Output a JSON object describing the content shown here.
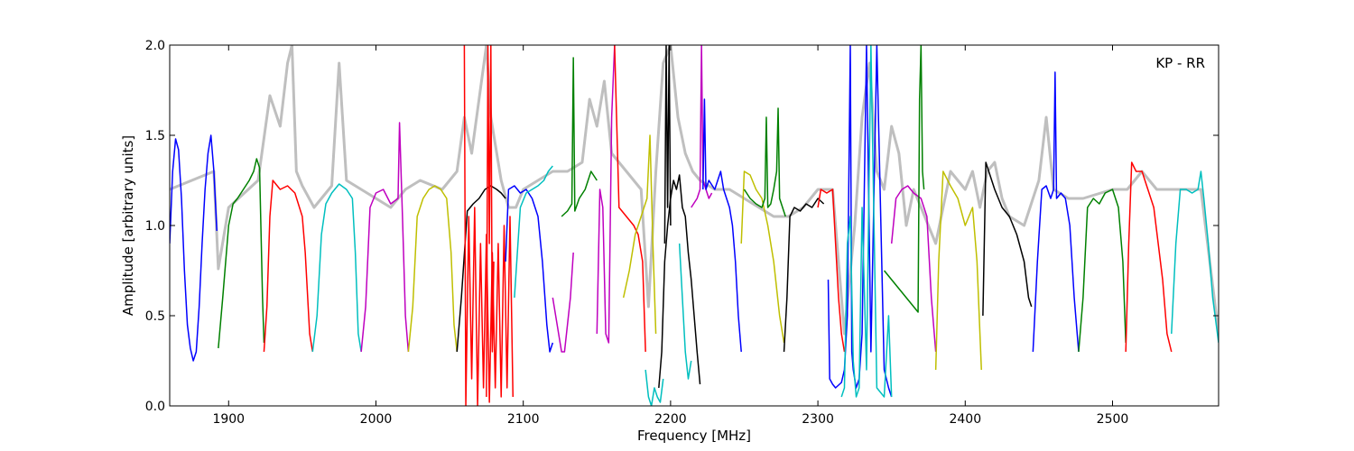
{
  "chart_data": {
    "type": "line",
    "title": "",
    "xlabel": "Frequency [MHz]",
    "ylabel": "Amplitude [arbitrary units]",
    "annotation": "KP - RR",
    "xlim": [
      1860,
      2572
    ],
    "ylim": [
      0.0,
      2.0
    ],
    "xticks": [
      1900,
      2000,
      2100,
      2200,
      2300,
      2400,
      2500
    ],
    "yticks": [
      0.0,
      0.5,
      1.0,
      1.5,
      2.0
    ],
    "xtick_labels": [
      "1900",
      "2000",
      "2100",
      "2200",
      "2300",
      "2400",
      "2500"
    ],
    "ytick_labels": [
      "0.0",
      "0.5",
      "1.0",
      "1.5",
      "2.0"
    ],
    "grid": false,
    "background_series": {
      "color": "#bfbfbf",
      "x": [
        1860,
        1890,
        1893,
        1900,
        1920,
        1928,
        1935,
        1940,
        1943,
        1946,
        1950,
        1958,
        1970,
        1975,
        1980,
        1990,
        2000,
        2010,
        2020,
        2030,
        2045,
        2055,
        2060,
        2065,
        2070,
        2075,
        2078,
        2085,
        2090,
        2095,
        2100,
        2110,
        2120,
        2130,
        2140,
        2145,
        2150,
        2155,
        2160,
        2170,
        2180,
        2185,
        2190,
        2195,
        2200,
        2205,
        2210,
        2215,
        2220,
        2230,
        2240,
        2250,
        2260,
        2270,
        2280,
        2290,
        2300,
        2310,
        2318,
        2325,
        2330,
        2335,
        2340,
        2345,
        2350,
        2355,
        2360,
        2365,
        2370,
        2380,
        2390,
        2400,
        2405,
        2410,
        2415,
        2420,
        2425,
        2430,
        2440,
        2450,
        2455,
        2460,
        2470,
        2480,
        2500,
        2510,
        2520,
        2530,
        2540,
        2550,
        2560,
        2572
      ],
      "y": [
        1.2,
        1.3,
        0.76,
        1.1,
        1.25,
        1.72,
        1.55,
        1.9,
        2.0,
        1.3,
        1.22,
        1.1,
        1.22,
        1.9,
        1.25,
        1.2,
        1.15,
        1.1,
        1.2,
        1.25,
        1.2,
        1.3,
        1.6,
        1.4,
        1.7,
        2.0,
        1.6,
        1.25,
        1.1,
        1.1,
        1.2,
        1.25,
        1.3,
        1.3,
        1.35,
        1.7,
        1.55,
        1.8,
        1.4,
        1.3,
        1.2,
        0.55,
        1.3,
        1.9,
        2.0,
        1.6,
        1.4,
        1.3,
        1.25,
        1.2,
        1.2,
        1.15,
        1.1,
        1.05,
        1.05,
        1.1,
        1.2,
        1.2,
        0.4,
        1.0,
        1.6,
        1.9,
        1.3,
        1.2,
        1.55,
        1.4,
        1.0,
        1.2,
        1.1,
        0.9,
        1.3,
        1.2,
        1.3,
        1.1,
        1.3,
        1.35,
        1.15,
        1.05,
        1.0,
        1.25,
        1.6,
        1.2,
        1.15,
        1.15,
        1.2,
        1.2,
        1.3,
        1.2,
        1.2,
        1.2,
        1.2,
        0.4
      ]
    },
    "series": [
      {
        "color": "#0000ff",
        "x": [
          1860,
          1862,
          1864,
          1866,
          1868,
          1870,
          1872,
          1874,
          1876,
          1878,
          1880,
          1882,
          1884,
          1886,
          1888,
          1890,
          1892
        ],
        "y": [
          0.9,
          1.3,
          1.48,
          1.42,
          1.15,
          0.75,
          0.45,
          0.32,
          0.25,
          0.3,
          0.55,
          0.9,
          1.2,
          1.4,
          1.5,
          1.3,
          0.97
        ]
      },
      {
        "color": "#008000",
        "x": [
          1893,
          1896,
          1900,
          1903,
          1906,
          1910,
          1914,
          1917,
          1919,
          1921,
          1923,
          1924
        ],
        "y": [
          0.32,
          0.6,
          1.0,
          1.12,
          1.15,
          1.2,
          1.25,
          1.3,
          1.37,
          1.32,
          0.6,
          0.35
        ]
      },
      {
        "color": "#ff0000",
        "x": [
          1924,
          1926,
          1928,
          1930,
          1935,
          1940,
          1945,
          1950,
          1952,
          1955,
          1957
        ],
        "y": [
          0.3,
          0.55,
          1.05,
          1.25,
          1.2,
          1.22,
          1.18,
          1.05,
          0.85,
          0.4,
          0.3
        ]
      },
      {
        "color": "#00bfbf",
        "x": [
          1957,
          1960,
          1963,
          1966,
          1970,
          1975,
          1980,
          1984,
          1986,
          1988,
          1990
        ],
        "y": [
          0.3,
          0.5,
          0.95,
          1.12,
          1.18,
          1.23,
          1.2,
          1.15,
          0.85,
          0.4,
          0.3
        ]
      },
      {
        "color": "#bf00bf",
        "x": [
          1990,
          1993,
          1996,
          2000,
          2005,
          2010,
          2015,
          2016,
          2018,
          2020,
          2022
        ],
        "y": [
          0.3,
          0.55,
          1.1,
          1.18,
          1.2,
          1.12,
          1.15,
          1.57,
          1.05,
          0.5,
          0.3
        ]
      },
      {
        "color": "#bfbf00",
        "x": [
          2022,
          2025,
          2028,
          2032,
          2036,
          2040,
          2044,
          2048,
          2051,
          2053,
          2055
        ],
        "y": [
          0.3,
          0.55,
          1.05,
          1.15,
          1.2,
          1.22,
          1.2,
          1.15,
          0.85,
          0.45,
          0.3
        ]
      },
      {
        "color": "#000000",
        "x": [
          2055,
          2058,
          2062,
          2066,
          2070,
          2074,
          2078,
          2082,
          2085,
          2088
        ],
        "y": [
          0.3,
          0.6,
          1.08,
          1.12,
          1.15,
          1.2,
          1.22,
          1.2,
          1.18,
          1.15
        ]
      },
      {
        "color": "#ff0000",
        "x": [
          2060,
          2061,
          2063,
          2065,
          2067,
          2069,
          2071,
          2073,
          2075,
          2077,
          2079,
          2081,
          2083,
          2085,
          2087,
          2089,
          2091,
          2093
        ],
        "y": [
          2.0,
          0.0,
          1.05,
          0.15,
          1.1,
          0.0,
          0.9,
          0.1,
          0.95,
          0.02,
          0.85,
          0.1,
          0.9,
          0.05,
          1.0,
          0.1,
          1.05,
          0.05
        ]
      },
      {
        "color": "#ff0000",
        "x": [
          2075,
          2076,
          2077,
          2078,
          2079,
          2080
        ],
        "y": [
          0.05,
          2.0,
          0.9,
          2.0,
          0.3,
          0.8
        ]
      },
      {
        "color": "#0000ff",
        "x": [
          2088,
          2090,
          2094,
          2098,
          2102,
          2106,
          2110,
          2113,
          2116,
          2118,
          2120
        ],
        "y": [
          0.8,
          1.2,
          1.22,
          1.18,
          1.2,
          1.15,
          1.05,
          0.8,
          0.45,
          0.3,
          0.35
        ]
      },
      {
        "color": "#00bfbf",
        "x": [
          2094,
          2098,
          2102,
          2106,
          2110,
          2114,
          2117,
          2120
        ],
        "y": [
          0.6,
          1.1,
          1.18,
          1.2,
          1.22,
          1.25,
          1.3,
          1.33
        ]
      },
      {
        "color": "#bf00bf",
        "x": [
          2120,
          2122,
          2124,
          2126,
          2128,
          2130,
          2132,
          2134
        ],
        "y": [
          0.6,
          0.5,
          0.4,
          0.3,
          0.3,
          0.45,
          0.6,
          0.85
        ]
      },
      {
        "color": "#008000",
        "x": [
          2126,
          2130,
          2133,
          2134,
          2135,
          2138,
          2142,
          2146,
          2150
        ],
        "y": [
          1.05,
          1.08,
          1.12,
          1.93,
          1.08,
          1.15,
          1.2,
          1.3,
          1.25
        ]
      },
      {
        "color": "#bf00bf",
        "x": [
          2150,
          2152,
          2154,
          2156,
          2158,
          2160,
          2162
        ],
        "y": [
          0.4,
          1.2,
          1.1,
          0.4,
          0.35,
          1.6,
          2.0
        ]
      },
      {
        "color": "#ff0000",
        "x": [
          2162,
          2165,
          2170,
          2175,
          2178,
          2181,
          2183
        ],
        "y": [
          2.0,
          1.1,
          1.05,
          1.0,
          0.95,
          0.8,
          0.3
        ]
      },
      {
        "color": "#bfbf00",
        "x": [
          2168,
          2172,
          2176,
          2180,
          2184,
          2186,
          2188,
          2190
        ],
        "y": [
          0.6,
          0.75,
          0.95,
          1.05,
          1.15,
          1.5,
          0.9,
          0.4
        ]
      },
      {
        "color": "#00bfbf",
        "x": [
          2183,
          2185,
          2187,
          2189,
          2191,
          2193,
          2195
        ],
        "y": [
          0.2,
          0.05,
          0.0,
          0.1,
          0.05,
          0.02,
          0.15
        ]
      },
      {
        "color": "#000000",
        "x": [
          2192,
          2194,
          2196,
          2198,
          2200,
          2202,
          2204,
          2206,
          2208,
          2210,
          2212,
          2214,
          2216,
          2218,
          2220
        ],
        "y": [
          0.1,
          0.3,
          0.8,
          1.0,
          1.15,
          1.25,
          1.2,
          1.28,
          1.1,
          1.05,
          0.85,
          0.7,
          0.5,
          0.3,
          0.12
        ]
      },
      {
        "color": "#000000",
        "x": [
          2196,
          2197,
          2198,
          2199,
          2200
        ],
        "y": [
          0.9,
          2.0,
          1.1,
          2.0,
          1.0
        ]
      },
      {
        "color": "#00bfbf",
        "x": [
          2206,
          2208,
          2210,
          2212,
          2214
        ],
        "y": [
          0.9,
          0.6,
          0.3,
          0.15,
          0.25
        ]
      },
      {
        "color": "#bf00bf",
        "x": [
          2214,
          2218,
          2220,
          2221,
          2222,
          2224,
          2226,
          2228
        ],
        "y": [
          1.1,
          1.15,
          1.2,
          2.0,
          1.25,
          1.2,
          1.15,
          1.18
        ]
      },
      {
        "color": "#0000ff",
        "x": [
          2222,
          2223,
          2224,
          2226,
          2230,
          2234,
          2236,
          2238,
          2240,
          2242,
          2244,
          2246,
          2248
        ],
        "y": [
          1.2,
          1.7,
          1.2,
          1.25,
          1.2,
          1.3,
          1.2,
          1.15,
          1.1,
          1.0,
          0.8,
          0.5,
          0.3
        ]
      },
      {
        "color": "#bfbf00",
        "x": [
          2248,
          2250,
          2254,
          2258,
          2262,
          2266,
          2270,
          2274,
          2277
        ],
        "y": [
          0.9,
          1.3,
          1.28,
          1.2,
          1.15,
          1.0,
          0.8,
          0.5,
          0.35
        ]
      },
      {
        "color": "#008000",
        "x": [
          2250,
          2254,
          2258,
          2262,
          2264,
          2265,
          2266,
          2268,
          2270,
          2272,
          2273,
          2274,
          2276,
          2278
        ],
        "y": [
          1.2,
          1.15,
          1.12,
          1.1,
          1.15,
          1.6,
          1.1,
          1.12,
          1.2,
          1.3,
          1.65,
          1.15,
          1.1,
          1.05
        ]
      },
      {
        "color": "#000000",
        "x": [
          2277,
          2279,
          2281,
          2284,
          2288,
          2292,
          2296,
          2300,
          2304
        ],
        "y": [
          0.3,
          0.6,
          1.05,
          1.1,
          1.08,
          1.12,
          1.1,
          1.15,
          1.12
        ]
      },
      {
        "color": "#ff0000",
        "x": [
          2300,
          2302,
          2306,
          2310,
          2312,
          2314,
          2316,
          2318
        ],
        "y": [
          1.1,
          1.2,
          1.18,
          1.2,
          0.9,
          0.6,
          0.4,
          0.3
        ]
      },
      {
        "color": "#0000ff",
        "x": [
          2307,
          2308,
          2310,
          2312,
          2316,
          2318,
          2320,
          2322,
          2323,
          2324,
          2326,
          2328,
          2330,
          2333,
          2336,
          2340,
          2345,
          2348,
          2350
        ],
        "y": [
          0.7,
          0.15,
          0.12,
          0.1,
          0.13,
          0.2,
          0.5,
          2.0,
          0.3,
          0.2,
          0.1,
          0.15,
          0.4,
          2.0,
          0.3,
          2.0,
          0.2,
          0.1,
          0.05
        ]
      },
      {
        "color": "#00bfbf",
        "x": [
          2316,
          2318,
          2320,
          2322,
          2324,
          2326,
          2328,
          2330,
          2333,
          2336,
          2340,
          2345,
          2348,
          2350
        ],
        "y": [
          0.05,
          0.1,
          0.9,
          1.05,
          0.25,
          0.05,
          0.1,
          1.1,
          0.2,
          2.0,
          0.1,
          0.05,
          0.5,
          0.05
        ]
      },
      {
        "color": "#bf00bf",
        "x": [
          2350,
          2353,
          2357,
          2361,
          2365,
          2370,
          2374,
          2377,
          2380
        ],
        "y": [
          0.9,
          1.15,
          1.2,
          1.22,
          1.18,
          1.15,
          1.05,
          0.6,
          0.3
        ]
      },
      {
        "color": "#008000",
        "x": [
          2345,
          2350,
          2355,
          2360,
          2365,
          2368,
          2369,
          2370,
          2371,
          2372
        ],
        "y": [
          0.75,
          0.7,
          0.65,
          0.6,
          0.55,
          0.52,
          1.7,
          2.0,
          1.3,
          1.2
        ]
      },
      {
        "color": "#bfbf00",
        "x": [
          2380,
          2382,
          2385,
          2390,
          2395,
          2400,
          2405,
          2408,
          2411
        ],
        "y": [
          0.2,
          0.8,
          1.3,
          1.22,
          1.15,
          1.0,
          1.1,
          0.8,
          0.2
        ]
      },
      {
        "color": "#000000",
        "x": [
          2412,
          2414,
          2416,
          2420,
          2425,
          2430,
          2435,
          2440,
          2443,
          2445
        ],
        "y": [
          0.5,
          1.35,
          1.3,
          1.2,
          1.1,
          1.05,
          0.95,
          0.8,
          0.6,
          0.55
        ]
      },
      {
        "color": "#0000ff",
        "x": [
          2446,
          2449,
          2452,
          2455,
          2458,
          2460,
          2461,
          2462,
          2465,
          2468,
          2471,
          2474,
          2477
        ],
        "y": [
          0.3,
          0.8,
          1.2,
          1.22,
          1.15,
          1.2,
          1.85,
          1.15,
          1.18,
          1.15,
          1.0,
          0.6,
          0.3
        ]
      },
      {
        "color": "#008000",
        "x": [
          2477,
          2480,
          2483,
          2487,
          2491,
          2495,
          2500,
          2504,
          2507,
          2509
        ],
        "y": [
          0.3,
          0.6,
          1.1,
          1.15,
          1.12,
          1.18,
          1.2,
          1.1,
          0.8,
          0.35
        ]
      },
      {
        "color": "#ff0000",
        "x": [
          2509,
          2511,
          2513,
          2516,
          2520,
          2524,
          2528,
          2531,
          2534,
          2537,
          2540
        ],
        "y": [
          0.3,
          0.9,
          1.35,
          1.3,
          1.3,
          1.2,
          1.1,
          0.9,
          0.7,
          0.4,
          0.3
        ]
      },
      {
        "color": "#00bfbf",
        "x": [
          2540,
          2543,
          2546,
          2550,
          2554,
          2558,
          2560,
          2562,
          2565,
          2568,
          2572
        ],
        "y": [
          0.4,
          0.9,
          1.2,
          1.2,
          1.18,
          1.2,
          1.3,
          1.15,
          0.9,
          0.6,
          0.35
        ]
      }
    ]
  }
}
